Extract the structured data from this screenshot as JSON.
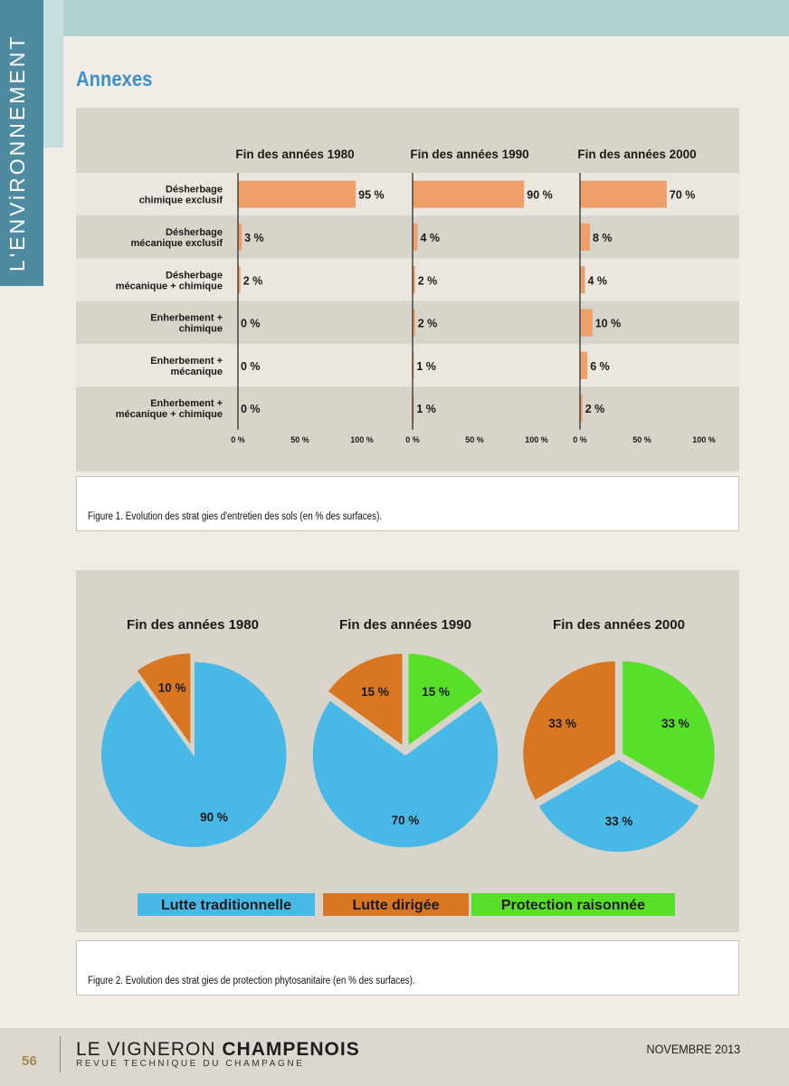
{
  "header": {
    "section_label": "L'ENViRONNEMENT",
    "title": "Annexes"
  },
  "figure1": {
    "caption": "Figure 1. Evolution des strat  gies d'entretien des sols (en % des surfaces).",
    "chart_data": {
      "type": "bar",
      "orientation": "horizontal",
      "panels": [
        "Fin des années 1980",
        "Fin des années 1990",
        "Fin des années 2000"
      ],
      "categories": [
        [
          "Désherbage",
          "chimique exclusif"
        ],
        [
          "Désherbage",
          "mécanique exclusif"
        ],
        [
          "Désherbage",
          "mécanique + chimique"
        ],
        [
          "Enherbement +",
          "chimique"
        ],
        [
          "Enherbement +",
          "mécanique"
        ],
        [
          "Enherbement +",
          "mécanique + chimique"
        ]
      ],
      "series": [
        {
          "values": [
            95,
            3,
            2,
            0,
            0,
            0
          ]
        },
        {
          "values": [
            90,
            4,
            2,
            2,
            1,
            1
          ]
        },
        {
          "values": [
            70,
            8,
            4,
            10,
            6,
            2
          ]
        }
      ],
      "value_suffix": " %",
      "xlim": [
        0,
        100
      ],
      "xticks": [
        "0 %",
        "50 %",
        "100 %"
      ],
      "bar_color": "#ee9f6a",
      "row_colors": [
        "#ebe7df",
        "#d9d4c9"
      ]
    }
  },
  "figure2": {
    "caption": "Figure 2. Evolution des strat  gies de protection phytosanitaire (en % des surfaces).",
    "chart_data": {
      "type": "pie",
      "titles": [
        "Fin des années 1980",
        "Fin des années 1990",
        "Fin des années 2000"
      ],
      "legend": [
        {
          "label": "Lutte traditionnelle",
          "color": "#48b9e7"
        },
        {
          "label": "Lutte dirigée",
          "color": "#d97622"
        },
        {
          "label": "Protection raisonnée",
          "color": "#57df2a"
        }
      ],
      "pies": [
        {
          "values": [
            90,
            10,
            0
          ],
          "labels": [
            "90 %",
            "10 %",
            ""
          ]
        },
        {
          "values": [
            70,
            15,
            15
          ],
          "labels": [
            "70 %",
            "15 %",
            "15 %"
          ]
        },
        {
          "values": [
            33.33,
            33.33,
            33.33
          ],
          "labels": [
            "33 %",
            "33 %",
            "33 %"
          ]
        }
      ]
    }
  },
  "footer": {
    "page_number": "56",
    "brand_light": "LE VIGNERON ",
    "brand_bold": "CHAMPENOIS",
    "tagline": "REVUE TECHNIQUE DU CHAMPAGNE",
    "date": "NOVEMBRE 2013"
  }
}
